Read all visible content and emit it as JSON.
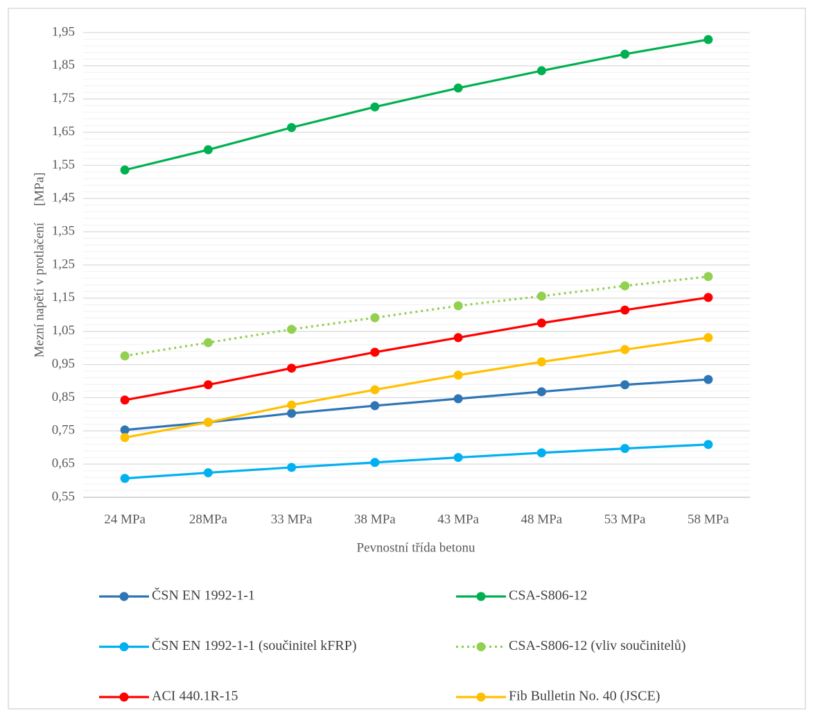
{
  "chart_data": {
    "type": "line",
    "y_label": "Mezní napětí v protlačení     [MPa]",
    "x_label": "Pevnostní třída betonu",
    "categories": [
      "24 MPa",
      "28MPa",
      "33 MPa",
      "38 MPa",
      "43 MPa",
      "48 MPa",
      "53 MPa",
      "58 MPa"
    ],
    "ylim": [
      0.55,
      1.95
    ],
    "yticks": [
      {
        "value": 0.55,
        "label": "0,55"
      },
      {
        "value": 0.65,
        "label": "0,65"
      },
      {
        "value": 0.75,
        "label": "0,75"
      },
      {
        "value": 0.85,
        "label": "0,85"
      },
      {
        "value": 0.95,
        "label": "0,95"
      },
      {
        "value": 1.05,
        "label": "1,05"
      },
      {
        "value": 1.15,
        "label": "1,15"
      },
      {
        "value": 1.25,
        "label": "1,25"
      },
      {
        "value": 1.35,
        "label": "1,35"
      },
      {
        "value": 1.45,
        "label": "1,45"
      },
      {
        "value": 1.55,
        "label": "1,55"
      },
      {
        "value": 1.65,
        "label": "1,65"
      },
      {
        "value": 1.75,
        "label": "1,75"
      },
      {
        "value": 1.85,
        "label": "1,85"
      },
      {
        "value": 1.95,
        "label": "1,95"
      }
    ],
    "grid": true,
    "legend": "bottom",
    "series": [
      {
        "name": "ČSN EN 1992-1-1",
        "color": "#2e75b6",
        "line_style": "solid",
        "values": [
          0.753,
          0.776,
          0.803,
          0.826,
          0.847,
          0.868,
          0.889,
          0.905
        ]
      },
      {
        "name": "CSA-S806-12",
        "color": "#00b050",
        "line_style": "solid",
        "values": [
          1.536,
          1.597,
          1.664,
          1.726,
          1.783,
          1.835,
          1.885,
          1.929
        ]
      },
      {
        "name": "ČSN EN 1992-1-1 (součinitel kFRP)",
        "color": "#00b0f0",
        "line_style": "solid",
        "values": [
          0.607,
          0.624,
          0.64,
          0.655,
          0.67,
          0.684,
          0.697,
          0.709
        ]
      },
      {
        "name": "CSA-S806-12 (vliv součinitelů)",
        "color": "#92d050",
        "line_style": "dotted",
        "values": [
          0.976,
          1.016,
          1.056,
          1.091,
          1.127,
          1.156,
          1.187,
          1.215
        ]
      },
      {
        "name": "ACI 440.1R-15",
        "color": "#ff0000",
        "line_style": "solid",
        "values": [
          0.843,
          0.889,
          0.939,
          0.987,
          1.031,
          1.075,
          1.114,
          1.152
        ]
      },
      {
        "name": "Fib Bulletin No. 40 (JSCE)",
        "color": "#ffc000",
        "line_style": "solid",
        "values": [
          0.73,
          0.776,
          0.828,
          0.874,
          0.918,
          0.958,
          0.995,
          1.031
        ]
      }
    ]
  }
}
